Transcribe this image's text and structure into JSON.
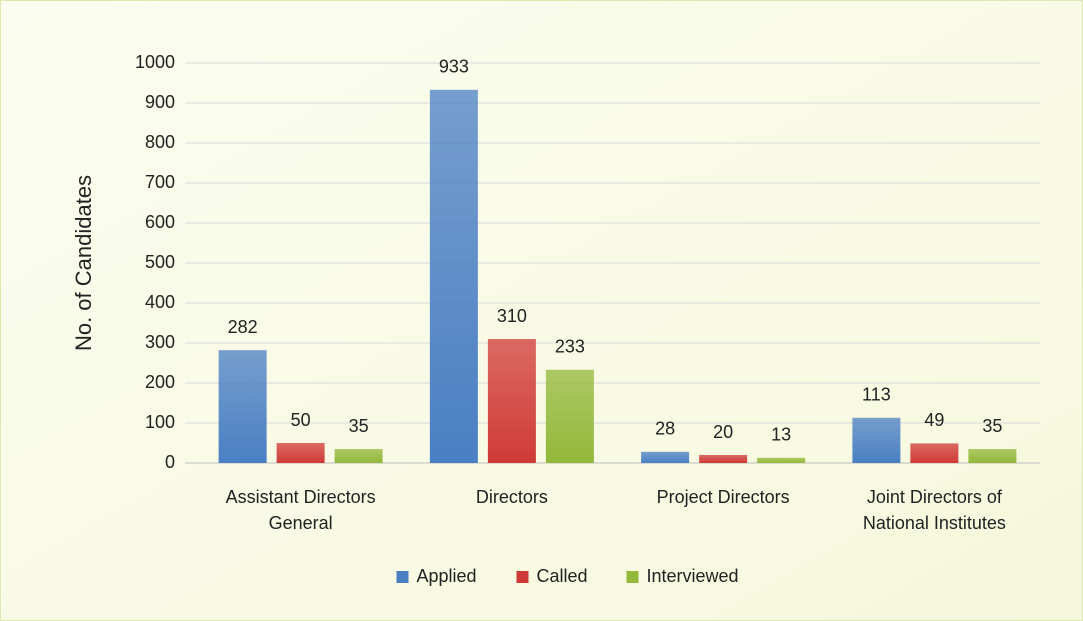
{
  "chart_data": {
    "type": "bar",
    "y_label": "No. of Candidates",
    "categories": [
      "Assistant Directors General",
      "Directors",
      "Project Directors",
      "Joint Directors of National Institutes"
    ],
    "series": [
      {
        "name": "Applied",
        "color": "#4a7fc4",
        "values": [
          282,
          933,
          28,
          113
        ]
      },
      {
        "name": "Called",
        "color": "#d03a36",
        "values": [
          50,
          310,
          20,
          49
        ]
      },
      {
        "name": "Interviewed",
        "color": "#93b83a",
        "values": [
          35,
          233,
          13,
          35
        ]
      }
    ],
    "ylim": [
      0,
      1000
    ],
    "yticks": [
      0,
      100,
      200,
      300,
      400,
      500,
      600,
      700,
      800,
      900,
      1000
    ],
    "grid": true,
    "legend": "bottom"
  }
}
